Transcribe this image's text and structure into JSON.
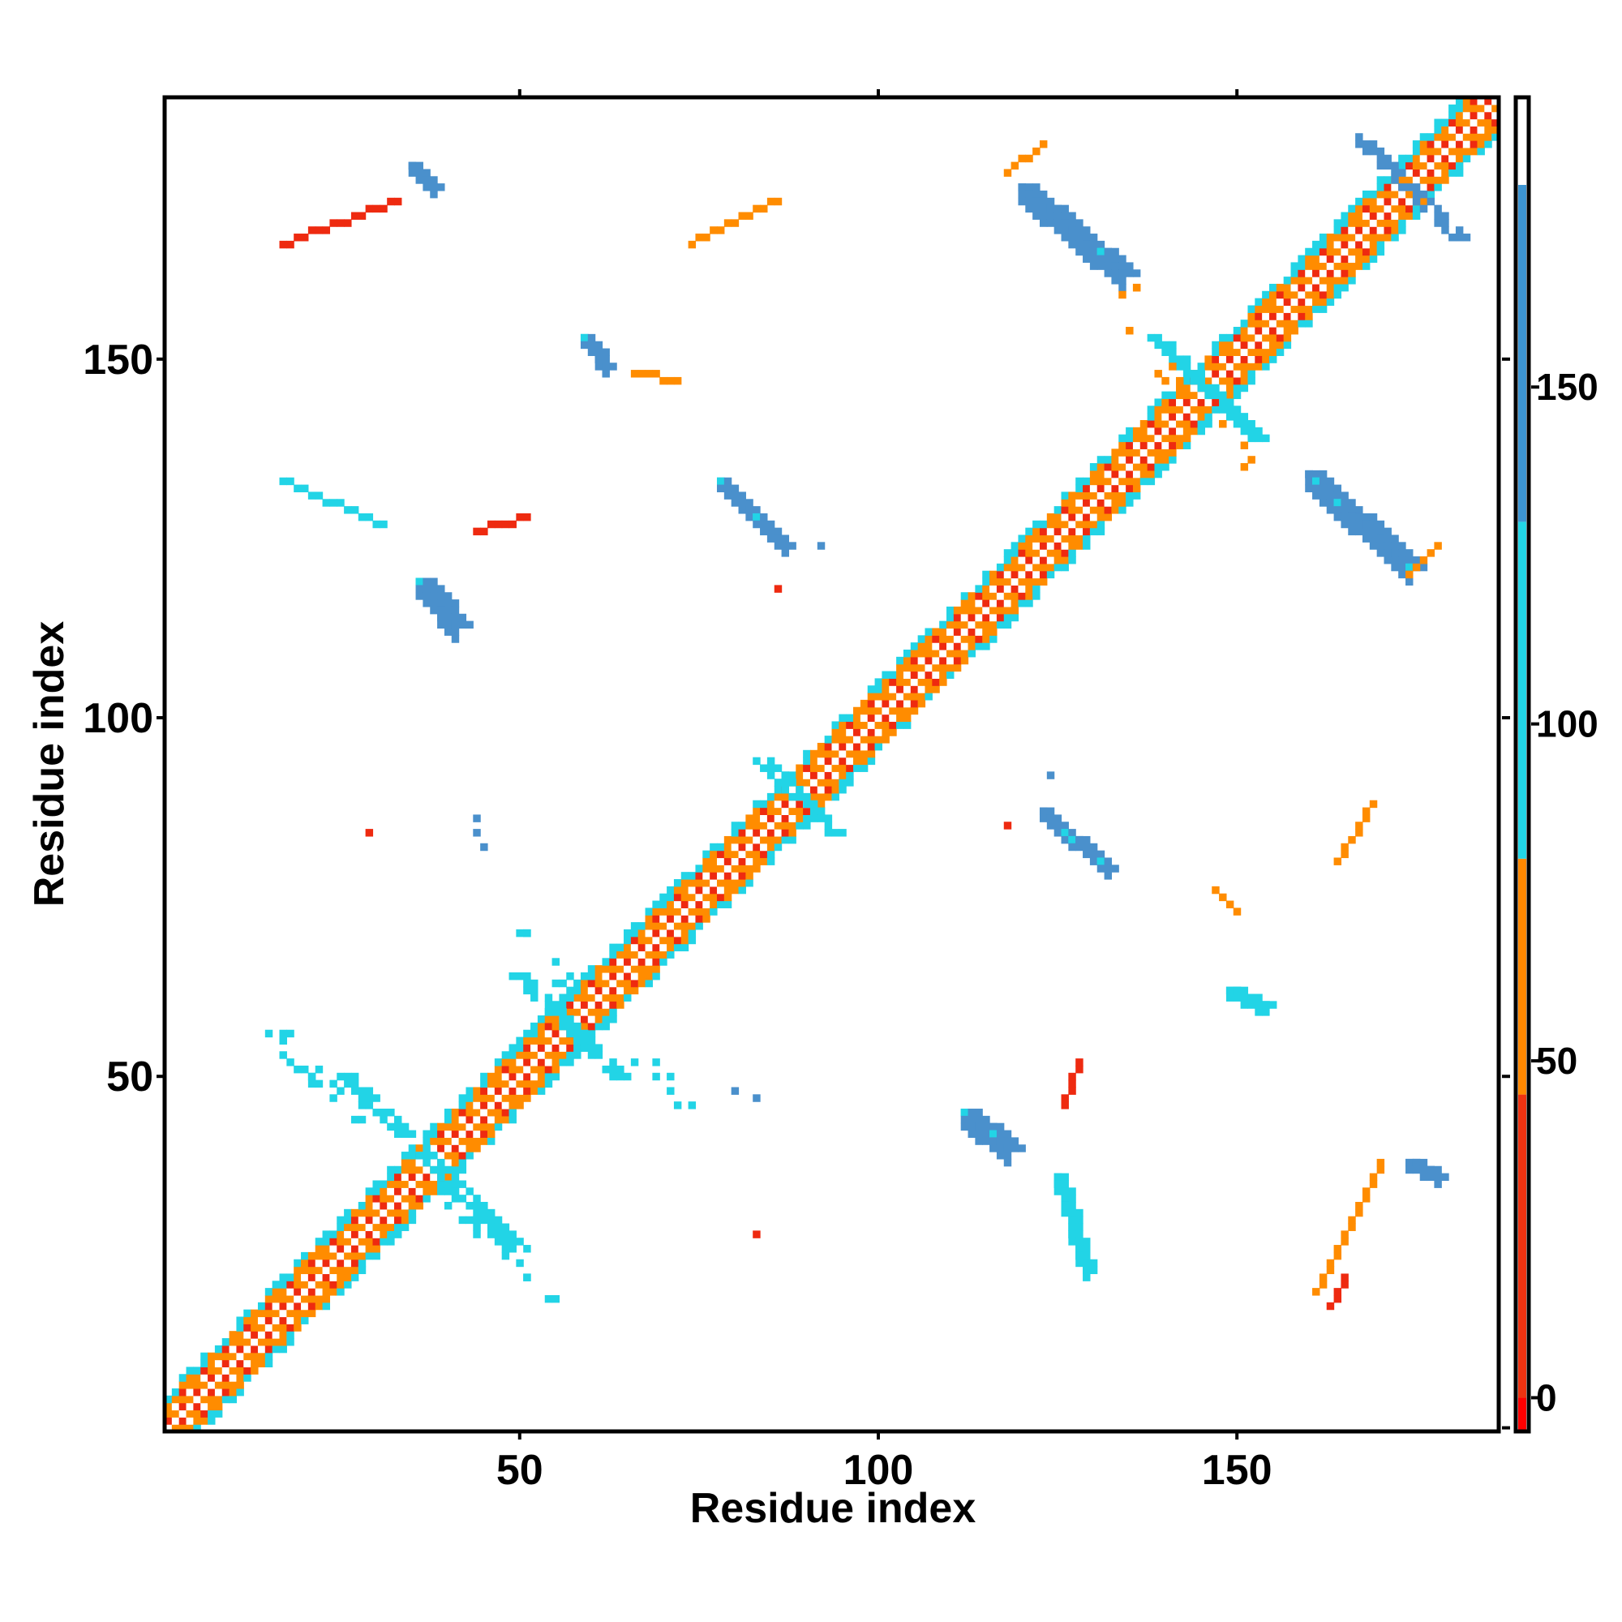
{
  "chart_data": {
    "type": "heatmap",
    "title": "",
    "xlabel": "Residue index",
    "ylabel": "Residue index",
    "xlim": [
      1,
      186
    ],
    "ylim": [
      1,
      186
    ],
    "x_ticks": [
      50,
      100,
      150
    ],
    "y_ticks": [
      50,
      100,
      150
    ],
    "grid": false,
    "colorbar": {
      "position": "right",
      "ticks": [
        0,
        50,
        100,
        150
      ],
      "range": [
        -5,
        193
      ],
      "bands": [
        {
          "from": -5,
          "to": 0,
          "color": "#ff0000"
        },
        {
          "from": 0,
          "to": 45,
          "color": "#ee3311"
        },
        {
          "from": 45,
          "to": 80,
          "color": "#ff8800"
        },
        {
          "from": 80,
          "to": 130,
          "color": "#22d6e6"
        },
        {
          "from": 130,
          "to": 180,
          "color": "#3d95d2"
        },
        {
          "from": 180,
          "to": 193,
          "color": "#ffffff"
        }
      ]
    },
    "colors": {
      "red": "#ee2a10",
      "orange": "#ff8c00",
      "cyan": "#22d4e6",
      "blue": "#4a90cc",
      "white": "#ffffff"
    },
    "diagonal_band": {
      "from": 1,
      "to": 186,
      "half_width": 5
    },
    "cross_features": [
      {
        "center": [
          38,
          38
        ],
        "arm": 12,
        "color": "cyan"
      },
      {
        "center": [
          57,
          57
        ],
        "arm": 7,
        "color": "cyan"
      },
      {
        "center": [
          89,
          89
        ],
        "arm": 5,
        "color": "cyan"
      },
      {
        "center": [
          146,
          146
        ],
        "arm": 7,
        "color": "cyan"
      },
      {
        "center": [
          174,
          174
        ],
        "arm": 7,
        "color": "blue"
      }
    ],
    "segments": [
      {
        "from": [
          120,
          174
        ],
        "to": [
          134,
          162
        ],
        "color": "blue",
        "width": 3
      },
      {
        "from": [
          160,
          134
        ],
        "to": [
          174,
          121
        ],
        "color": "blue",
        "width": 3
      },
      {
        "from": [
          112,
          45
        ],
        "to": [
          118,
          40
        ],
        "color": "blue",
        "width": 3
      },
      {
        "from": [
          123,
          87
        ],
        "to": [
          132,
          79
        ],
        "color": "blue",
        "width": 2
      },
      {
        "from": [
          78,
          133
        ],
        "to": [
          87,
          124
        ],
        "color": "blue",
        "width": 2
      },
      {
        "from": [
          36,
          119
        ],
        "to": [
          41,
          113
        ],
        "color": "blue",
        "width": 3
      },
      {
        "from": [
          59,
          153
        ],
        "to": [
          62,
          149
        ],
        "color": "blue",
        "width": 2
      },
      {
        "from": [
          17,
          133
        ],
        "to": [
          31,
          127
        ],
        "color": "cyan",
        "width": 1
      },
      {
        "from": [
          149,
          62
        ],
        "to": [
          154,
          60
        ],
        "color": "cyan",
        "width": 2
      },
      {
        "from": [
          125,
          36
        ],
        "to": [
          129,
          23
        ],
        "color": "cyan",
        "width": 2
      },
      {
        "from": [
          174,
          38
        ],
        "to": [
          178,
          36
        ],
        "color": "blue",
        "width": 2
      },
      {
        "from": [
          35,
          177
        ],
        "to": [
          38,
          174
        ],
        "color": "blue",
        "width": 2
      },
      {
        "from": [
          17,
          166
        ],
        "to": [
          33,
          172
        ],
        "color": "red",
        "width": 1
      },
      {
        "from": [
          74,
          166
        ],
        "to": [
          86,
          172
        ],
        "color": "orange",
        "width": 1
      },
      {
        "from": [
          161,
          20
        ],
        "to": [
          170,
          38
        ],
        "color": "orange",
        "width": 1
      },
      {
        "from": [
          163,
          18
        ],
        "to": [
          165,
          22
        ],
        "color": "red",
        "width": 1
      },
      {
        "from": [
          164,
          80
        ],
        "to": [
          169,
          88
        ],
        "color": "orange",
        "width": 1
      },
      {
        "from": [
          118,
          176
        ],
        "to": [
          123,
          180
        ],
        "color": "orange",
        "width": 1
      },
      {
        "from": [
          174,
          120
        ],
        "to": [
          178,
          124
        ],
        "color": "orange",
        "width": 1
      },
      {
        "from": [
          126,
          46
        ],
        "to": [
          128,
          52
        ],
        "color": "red",
        "width": 1
      },
      {
        "from": [
          44,
          126
        ],
        "to": [
          51,
          128
        ],
        "color": "red",
        "width": 1
      },
      {
        "from": [
          66,
          148
        ],
        "to": [
          72,
          147
        ],
        "color": "orange",
        "width": 1
      }
    ],
    "scatter_features": [
      {
        "x": 22,
        "y": 50,
        "color": "cyan",
        "count": 20,
        "spread": 9
      },
      {
        "x": 47,
        "y": 27,
        "color": "cyan",
        "count": 20,
        "spread": 9
      },
      {
        "x": 52,
        "y": 68,
        "color": "cyan",
        "count": 8,
        "spread": 6
      },
      {
        "x": 68,
        "y": 52,
        "color": "cyan",
        "count": 8,
        "spread": 6
      },
      {
        "x": 44,
        "y": 84,
        "color": "blue",
        "count": 3,
        "spread": 2
      },
      {
        "x": 82,
        "y": 46,
        "color": "blue",
        "count": 2,
        "spread": 2
      },
      {
        "x": 150,
        "y": 72,
        "color": "orange",
        "count": 4,
        "spread": 3
      },
      {
        "x": 138,
        "y": 150,
        "color": "orange",
        "count": 5,
        "spread": 4
      },
      {
        "x": 150,
        "y": 138,
        "color": "orange",
        "count": 5,
        "spread": 4
      },
      {
        "x": 135,
        "y": 160,
        "color": "orange",
        "count": 3,
        "spread": 2
      },
      {
        "x": 29,
        "y": 84,
        "color": "red",
        "count": 1,
        "spread": 0
      },
      {
        "x": 83,
        "y": 28,
        "color": "red",
        "count": 1,
        "spread": 0
      },
      {
        "x": 86,
        "y": 118,
        "color": "red",
        "count": 1,
        "spread": 0
      },
      {
        "x": 118,
        "y": 85,
        "color": "red",
        "count": 1,
        "spread": 0
      },
      {
        "x": 92,
        "y": 124,
        "color": "blue",
        "count": 1,
        "spread": 0
      },
      {
        "x": 124,
        "y": 92,
        "color": "blue",
        "count": 1,
        "spread": 0
      }
    ]
  }
}
